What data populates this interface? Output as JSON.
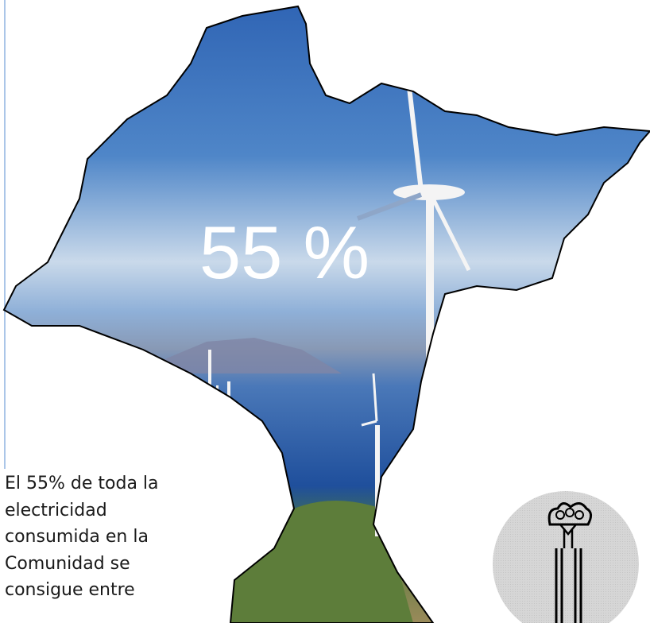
{
  "headline": "55 %",
  "body": {
    "lines": [
      "El 55% de toda la",
      "electricidad",
      "consumida en la",
      "Comunidad se",
      "consigue entre"
    ]
  }
}
